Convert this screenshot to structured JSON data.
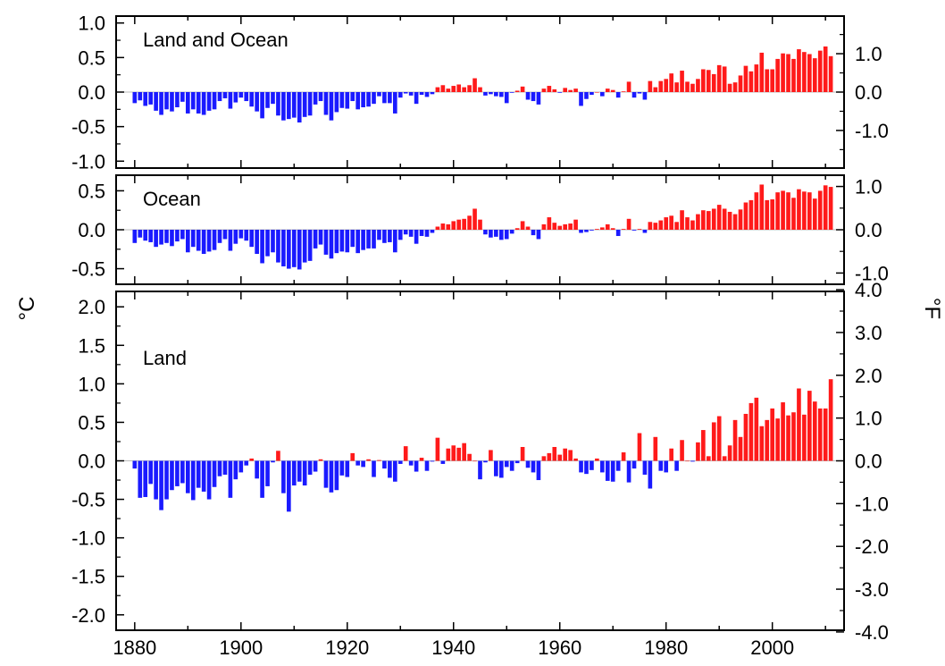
{
  "chart_data": {
    "type": "bar",
    "x": [
      1880,
      1881,
      1882,
      1883,
      1884,
      1885,
      1886,
      1887,
      1888,
      1889,
      1890,
      1891,
      1892,
      1893,
      1894,
      1895,
      1896,
      1897,
      1898,
      1899,
      1900,
      1901,
      1902,
      1903,
      1904,
      1905,
      1906,
      1907,
      1908,
      1909,
      1910,
      1911,
      1912,
      1913,
      1914,
      1915,
      1916,
      1917,
      1918,
      1919,
      1920,
      1921,
      1922,
      1923,
      1924,
      1925,
      1926,
      1927,
      1928,
      1929,
      1930,
      1931,
      1932,
      1933,
      1934,
      1935,
      1936,
      1937,
      1938,
      1939,
      1940,
      1941,
      1942,
      1943,
      1944,
      1945,
      1946,
      1947,
      1948,
      1949,
      1950,
      1951,
      1952,
      1953,
      1954,
      1955,
      1956,
      1957,
      1958,
      1959,
      1960,
      1961,
      1962,
      1963,
      1964,
      1965,
      1966,
      1967,
      1968,
      1969,
      1970,
      1971,
      1972,
      1973,
      1974,
      1975,
      1976,
      1977,
      1978,
      1979,
      1980,
      1981,
      1982,
      1983,
      1984,
      1985,
      1986,
      1987,
      1988,
      1989,
      1990,
      1991,
      1992,
      1993,
      1994,
      1995,
      1996,
      1997,
      1998,
      1999,
      2000,
      2001,
      2002,
      2003,
      2004,
      2005,
      2006,
      2007,
      2008,
      2009,
      2010,
      2011
    ],
    "x_ticks": [
      "1880",
      "1900",
      "1920",
      "1940",
      "1960",
      "1980",
      "2000"
    ],
    "left_axis_label": "°C",
    "right_axis_label": "°F",
    "colors": {
      "positive": "#ff1a1a",
      "negative": "#1a1aff",
      "frame": "#000000"
    },
    "panels": [
      {
        "title": "Land and Ocean",
        "ylim": [
          -1.1,
          1.1
        ],
        "left_ticks": [
          "1.0",
          "0.5",
          "0.0",
          "-0.5",
          "-1.0"
        ],
        "left_tick_values": [
          1.0,
          0.5,
          0.0,
          -0.5,
          -1.0
        ],
        "right_ticks": [
          "1.0",
          "0.0",
          "-1.0"
        ],
        "right_tick_values_f": [
          1.0,
          0.0,
          -1.0
        ],
        "values": [
          -0.16,
          -0.12,
          -0.2,
          -0.18,
          -0.27,
          -0.33,
          -0.25,
          -0.28,
          -0.22,
          -0.14,
          -0.31,
          -0.25,
          -0.31,
          -0.33,
          -0.27,
          -0.25,
          -0.13,
          -0.09,
          -0.24,
          -0.15,
          -0.08,
          -0.13,
          -0.21,
          -0.28,
          -0.38,
          -0.23,
          -0.17,
          -0.34,
          -0.41,
          -0.39,
          -0.37,
          -0.44,
          -0.36,
          -0.34,
          -0.18,
          -0.13,
          -0.33,
          -0.41,
          -0.29,
          -0.23,
          -0.24,
          -0.13,
          -0.25,
          -0.22,
          -0.21,
          -0.17,
          -0.06,
          -0.16,
          -0.16,
          -0.31,
          -0.08,
          -0.02,
          -0.05,
          -0.17,
          -0.04,
          -0.07,
          -0.03,
          0.07,
          0.1,
          0.05,
          0.09,
          0.11,
          0.07,
          0.1,
          0.2,
          0.07,
          -0.05,
          -0.03,
          -0.06,
          -0.07,
          -0.16,
          -0.01,
          0.02,
          0.08,
          -0.11,
          -0.13,
          -0.18,
          0.05,
          0.09,
          0.04,
          -0.01,
          0.06,
          0.03,
          0.05,
          -0.2,
          -0.1,
          -0.04,
          0.0,
          -0.06,
          0.05,
          0.03,
          -0.08,
          0.01,
          0.15,
          -0.08,
          -0.02,
          -0.11,
          0.16,
          0.07,
          0.16,
          0.19,
          0.27,
          0.14,
          0.31,
          0.15,
          0.12,
          0.19,
          0.33,
          0.32,
          0.26,
          0.39,
          0.37,
          0.12,
          0.14,
          0.24,
          0.38,
          0.3,
          0.4,
          0.57,
          0.33,
          0.33,
          0.48,
          0.56,
          0.55,
          0.48,
          0.62,
          0.58,
          0.55,
          0.49,
          0.6,
          0.66,
          0.52
        ],
        "panel_text_top_partial": ""
      },
      {
        "title": "Ocean",
        "ylim": [
          -0.7,
          0.7
        ],
        "left_ticks": [
          "0.5",
          "0.0",
          "-0.5"
        ],
        "left_tick_values": [
          0.5,
          0.0,
          -0.5
        ],
        "right_ticks": [
          "1.0",
          "0.0",
          "-1.0"
        ],
        "right_tick_values_f": [
          1.0,
          0.0,
          -1.0
        ],
        "values": [
          -0.17,
          -0.1,
          -0.14,
          -0.16,
          -0.22,
          -0.19,
          -0.17,
          -0.21,
          -0.15,
          -0.12,
          -0.29,
          -0.22,
          -0.27,
          -0.31,
          -0.28,
          -0.26,
          -0.17,
          -0.12,
          -0.27,
          -0.18,
          -0.11,
          -0.14,
          -0.22,
          -0.31,
          -0.43,
          -0.34,
          -0.29,
          -0.42,
          -0.47,
          -0.5,
          -0.48,
          -0.51,
          -0.42,
          -0.4,
          -0.24,
          -0.19,
          -0.32,
          -0.37,
          -0.3,
          -0.28,
          -0.29,
          -0.22,
          -0.3,
          -0.26,
          -0.24,
          -0.24,
          -0.13,
          -0.17,
          -0.16,
          -0.29,
          -0.13,
          -0.06,
          -0.09,
          -0.18,
          -0.08,
          -0.09,
          -0.04,
          0.04,
          0.08,
          0.07,
          0.11,
          0.13,
          0.14,
          0.18,
          0.27,
          0.13,
          -0.06,
          -0.1,
          -0.09,
          -0.13,
          -0.12,
          -0.05,
          0.02,
          0.11,
          0.04,
          -0.07,
          -0.12,
          0.07,
          0.16,
          0.09,
          0.05,
          0.07,
          0.08,
          0.13,
          -0.04,
          -0.03,
          -0.01,
          0.01,
          0.03,
          0.07,
          0.02,
          -0.08,
          0.01,
          0.14,
          -0.01,
          0.01,
          -0.04,
          0.1,
          0.09,
          0.12,
          0.16,
          0.18,
          0.1,
          0.25,
          0.16,
          0.12,
          0.2,
          0.25,
          0.24,
          0.27,
          0.32,
          0.27,
          0.23,
          0.2,
          0.26,
          0.35,
          0.38,
          0.48,
          0.58,
          0.38,
          0.39,
          0.48,
          0.5,
          0.48,
          0.41,
          0.52,
          0.49,
          0.48,
          0.4,
          0.5,
          0.57,
          0.55
        ],
        "panel_text_top_partial": ""
      },
      {
        "title": "Land",
        "ylim": [
          -2.2,
          2.2
        ],
        "left_ticks": [
          "2.0",
          "1.5",
          "1.0",
          "0.5",
          "0.0",
          "-0.5",
          "-1.0",
          "-1.5",
          "-2.0"
        ],
        "left_tick_values": [
          2.0,
          1.5,
          1.0,
          0.5,
          0.0,
          -0.5,
          -1.0,
          -1.5,
          -2.0
        ],
        "right_ticks": [
          "4.0",
          "3.0",
          "2.0",
          "1.0",
          "0.0",
          "-1.0",
          "-2.0",
          "-3.0",
          "-4.0"
        ],
        "right_tick_values_f": [
          4.0,
          3.0,
          2.0,
          1.0,
          0.0,
          -1.0,
          -2.0,
          -3.0,
          -4.0
        ],
        "values": [
          -0.1,
          -0.48,
          -0.47,
          -0.3,
          -0.5,
          -0.64,
          -0.5,
          -0.38,
          -0.33,
          -0.29,
          -0.42,
          -0.51,
          -0.35,
          -0.4,
          -0.5,
          -0.34,
          -0.2,
          -0.18,
          -0.48,
          -0.24,
          -0.15,
          -0.06,
          0.03,
          -0.23,
          -0.48,
          -0.33,
          -0.02,
          0.13,
          -0.42,
          -0.66,
          -0.32,
          -0.27,
          -0.32,
          -0.18,
          -0.14,
          0.02,
          -0.35,
          -0.41,
          -0.38,
          -0.19,
          -0.21,
          0.1,
          -0.06,
          -0.08,
          0.02,
          -0.21,
          0.01,
          -0.1,
          -0.22,
          -0.27,
          -0.04,
          0.19,
          -0.06,
          -0.14,
          0.04,
          -0.13,
          -0.01,
          0.3,
          -0.04,
          0.16,
          0.2,
          0.17,
          0.23,
          0.09,
          0.0,
          -0.24,
          -0.02,
          0.14,
          -0.2,
          -0.22,
          -0.08,
          -0.13,
          -0.03,
          0.18,
          -0.09,
          -0.15,
          -0.25,
          0.06,
          0.1,
          0.18,
          0.08,
          0.16,
          0.14,
          0.03,
          -0.15,
          -0.17,
          -0.12,
          0.03,
          -0.15,
          -0.26,
          -0.27,
          -0.13,
          0.11,
          -0.28,
          -0.1,
          0.36,
          -0.18,
          -0.36,
          0.31,
          -0.13,
          -0.15,
          0.16,
          -0.13,
          0.27,
          0.0,
          -0.01,
          0.24,
          0.4,
          0.06,
          0.5,
          0.58,
          0.06,
          0.2,
          0.53,
          0.31,
          0.61,
          0.75,
          0.82,
          0.45,
          0.53,
          0.68,
          0.55,
          0.76,
          0.59,
          0.63,
          0.94,
          0.6,
          0.91,
          0.77,
          0.68,
          0.68,
          1.06
        ],
        "panel_text_top_partial": ""
      }
    ]
  }
}
